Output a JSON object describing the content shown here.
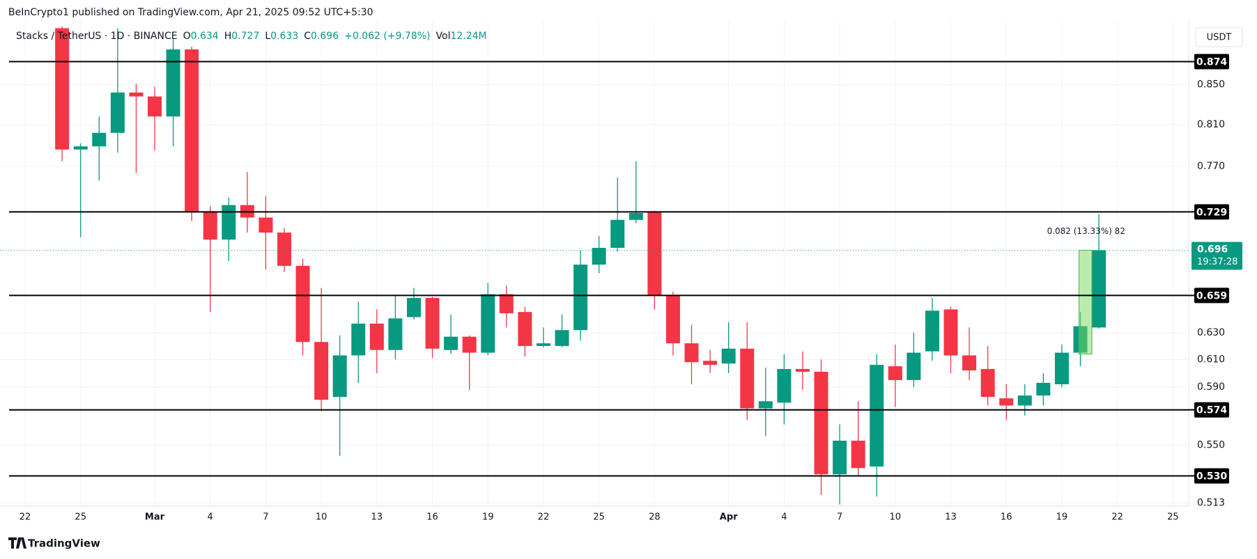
{
  "header": {
    "attribution": "BeInCrypto1 published on TradingView.com, Apr 21, 2025 09:52 UTC+5:30",
    "symbol": "Stacks / TetherUS · 1D · BINANCE",
    "labels": [
      "O",
      "H",
      "L",
      "C",
      "Vol"
    ],
    "change": "+0.062 (+9.78%)",
    "volume": "12.24M",
    "currency": "USDT",
    "countdown": "19:37:28",
    "footer": "TradingView"
  },
  "chart_data": {
    "type": "candlestick",
    "categories": [
      "22",
      null,
      null,
      "25",
      null,
      null,
      null,
      "Mar",
      null,
      null,
      "4",
      null,
      null,
      "7",
      null,
      null,
      "10",
      null,
      null,
      "13",
      null,
      null,
      "16",
      null,
      null,
      "19",
      null,
      null,
      "22",
      null,
      null,
      "25",
      null,
      null,
      "28",
      null,
      null,
      null,
      "Apr",
      null,
      null,
      "4",
      null,
      null,
      "7",
      null,
      null,
      "10",
      null,
      null,
      "13",
      null,
      null,
      "16",
      null,
      null,
      "19",
      null,
      null,
      "22",
      null,
      null,
      "25"
    ],
    "open": [
      null,
      null,
      0.91,
      0.786,
      0.789,
      0.802,
      0.842,
      0.838,
      0.818,
      0.887,
      0.729,
      0.705,
      0.735,
      0.724,
      0.711,
      0.683,
      0.623,
      0.583,
      0.613,
      0.637,
      0.617,
      0.642,
      0.657,
      0.617,
      0.627,
      0.615,
      0.66,
      0.646,
      0.62,
      0.62,
      0.632,
      0.684,
      0.698,
      0.722,
      0.729,
      0.659,
      0.622,
      0.609,
      0.607,
      0.618,
      0.575,
      0.579,
      0.603,
      0.601,
      0.531,
      0.553,
      0.536,
      0.605,
      0.595,
      0.616,
      0.648,
      0.613,
      0.603,
      0.582,
      0.577,
      0.584,
      0.592,
      0.615,
      0.634,
      null,
      null,
      null,
      null
    ],
    "high": [
      null,
      null,
      0.912,
      0.792,
      0.818,
      0.91,
      0.851,
      0.848,
      0.898,
      0.89,
      0.734,
      0.742,
      0.765,
      0.743,
      0.715,
      0.689,
      0.665,
      0.628,
      0.654,
      0.648,
      0.659,
      0.665,
      0.658,
      0.644,
      0.628,
      0.669,
      0.667,
      0.65,
      0.634,
      0.644,
      0.696,
      0.708,
      0.76,
      0.775,
      0.73,
      0.662,
      0.636,
      0.617,
      0.638,
      0.638,
      0.604,
      0.614,
      0.616,
      0.61,
      0.564,
      0.58,
      0.614,
      0.621,
      0.63,
      0.657,
      0.65,
      0.634,
      0.62,
      0.592,
      0.592,
      0.6,
      0.621,
      0.646,
      0.727,
      null,
      null,
      null,
      null
    ],
    "low": [
      null,
      null,
      0.775,
      0.707,
      0.757,
      0.783,
      0.764,
      0.785,
      0.789,
      0.721,
      0.646,
      0.687,
      0.711,
      0.68,
      0.678,
      0.613,
      0.573,
      0.543,
      0.593,
      0.6,
      0.61,
      0.64,
      0.611,
      0.614,
      0.588,
      0.613,
      0.634,
      0.612,
      0.619,
      0.619,
      0.624,
      0.677,
      0.695,
      0.719,
      0.648,
      0.613,
      0.592,
      0.6,
      0.6,
      0.567,
      0.556,
      0.564,
      0.588,
      0.518,
      0.512,
      0.53,
      0.517,
      0.576,
      0.59,
      0.609,
      0.6,
      0.595,
      0.577,
      0.567,
      0.57,
      0.577,
      0.59,
      0.605,
      0.633,
      null,
      null,
      null,
      null
    ],
    "close": [
      null,
      null,
      0.786,
      0.789,
      0.802,
      0.842,
      0.838,
      0.818,
      0.887,
      0.729,
      0.705,
      0.735,
      0.724,
      0.711,
      0.683,
      0.623,
      0.581,
      0.613,
      0.637,
      0.617,
      0.641,
      0.657,
      0.618,
      0.627,
      0.615,
      0.66,
      0.645,
      0.62,
      0.622,
      0.632,
      0.684,
      0.698,
      0.722,
      0.728,
      0.659,
      0.622,
      0.608,
      0.606,
      0.618,
      0.575,
      0.58,
      0.603,
      0.601,
      0.531,
      0.553,
      0.535,
      0.606,
      0.595,
      0.615,
      0.647,
      0.613,
      0.602,
      0.583,
      0.577,
      0.584,
      0.593,
      0.615,
      0.635,
      0.696,
      null,
      null,
      null,
      null
    ],
    "ylim": [
      0.511,
      0.915
    ],
    "yticks": [
      0.513,
      {
        "value": 0.55,
        "label": "0.550"
      },
      {
        "value": 0.59,
        "label": "0.590"
      },
      {
        "value": 0.61,
        "label": "0.610"
      },
      {
        "value": 0.63,
        "label": "0.630"
      },
      {
        "value": 0.77,
        "label": "0.770"
      },
      {
        "value": 0.81,
        "label": "0.810"
      },
      {
        "value": 0.85,
        "label": "0.850"
      }
    ],
    "log_scale": true,
    "grid": true,
    "up_color": "#089981",
    "down_color": "#f23645",
    "levels": [
      0.874,
      0.729,
      0.659,
      0.574,
      {
        "value": 0.53,
        "label": "0.530"
      }
    ],
    "level_color": "#000000",
    "measure": {
      "label": "0.082 (13.33%) 82",
      "from": 0.614,
      "to": 0.696
    }
  }
}
